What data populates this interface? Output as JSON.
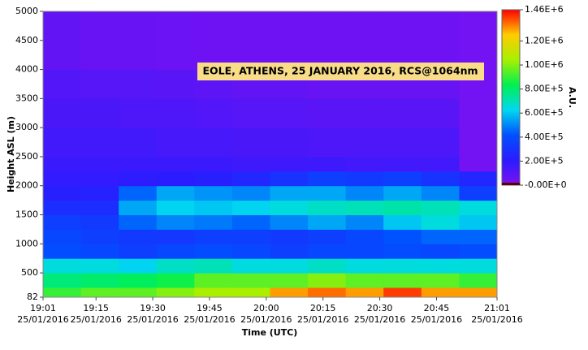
{
  "chart_data": {
    "type": "heatmap",
    "annotation": "EOLE, ATHENS, 25 JANUARY 2016, RCS@1064nm",
    "ylabel": "Height ASL (m)",
    "xlabel": "Time (UTC)",
    "colorbar_label": "A.U.",
    "xlim": [
      "2016-01-25 19:01",
      "2016-01-25 21:01"
    ],
    "xticks": [
      {
        "value": "2016-01-25 19:01",
        "label": [
          "19:01",
          "25/01/2016"
        ]
      },
      {
        "value": "2016-01-25 19:15",
        "label": [
          "19:15",
          "25/01/2016"
        ]
      },
      {
        "value": "2016-01-25 19:30",
        "label": [
          "19:30",
          "25/01/2016"
        ]
      },
      {
        "value": "2016-01-25 19:45",
        "label": [
          "19:45",
          "25/01/2016"
        ]
      },
      {
        "value": "2016-01-25 20:00",
        "label": [
          "20:00",
          "25/01/2016"
        ]
      },
      {
        "value": "2016-01-25 20:15",
        "label": [
          "20:15",
          "25/01/2016"
        ]
      },
      {
        "value": "2016-01-25 20:30",
        "label": [
          "20:30",
          "25/01/2016"
        ]
      },
      {
        "value": "2016-01-25 20:45",
        "label": [
          "20:45",
          "25/01/2016"
        ]
      },
      {
        "value": "2016-01-25 21:01",
        "label": [
          "21:01",
          "25/01/2016"
        ]
      }
    ],
    "ylim": [
      82,
      5000
    ],
    "yticks": [
      82,
      500,
      1000,
      1500,
      2000,
      2500,
      3000,
      3500,
      4000,
      4500,
      5000
    ],
    "x_bins": [
      "2016-01-25 19:01",
      "2016-01-25 19:11",
      "2016-01-25 19:21",
      "2016-01-25 19:31",
      "2016-01-25 19:41",
      "2016-01-25 19:51",
      "2016-01-25 20:01",
      "2016-01-25 20:11",
      "2016-01-25 20:21",
      "2016-01-25 20:31",
      "2016-01-25 20:41",
      "2016-01-25 20:51",
      "2016-01-25 21:01"
    ],
    "y_bins": [
      82,
      250,
      500,
      750,
      1000,
      1250,
      1500,
      1750,
      2000,
      2250,
      2500,
      3000,
      3500,
      4000,
      5000
    ],
    "z": [
      [
        900000,
        950000,
        950000,
        1000000,
        1050000,
        1050000,
        1300000,
        1350000,
        1300000,
        1400000,
        1300000,
        1300000
      ],
      [
        780000,
        800000,
        820000,
        850000,
        950000,
        950000,
        950000,
        1000000,
        950000,
        950000,
        950000,
        900000
      ],
      [
        650000,
        650000,
        620000,
        680000,
        700000,
        650000,
        650000,
        680000,
        650000,
        650000,
        650000,
        650000
      ],
      [
        400000,
        380000,
        350000,
        380000,
        400000,
        380000,
        350000,
        380000,
        380000,
        400000,
        380000,
        400000
      ],
      [
        380000,
        350000,
        330000,
        320000,
        350000,
        350000,
        330000,
        350000,
        380000,
        420000,
        450000,
        450000
      ],
      [
        350000,
        330000,
        450000,
        500000,
        480000,
        450000,
        500000,
        550000,
        500000,
        600000,
        650000,
        600000
      ],
      [
        280000,
        280000,
        550000,
        620000,
        600000,
        620000,
        650000,
        680000,
        700000,
        720000,
        700000,
        650000
      ],
      [
        220000,
        230000,
        450000,
        550000,
        520000,
        500000,
        550000,
        550000,
        500000,
        550000,
        500000,
        350000
      ],
      [
        190000,
        190000,
        200000,
        210000,
        220000,
        250000,
        300000,
        350000,
        330000,
        350000,
        300000,
        250000
      ],
      [
        170000,
        170000,
        170000,
        170000,
        170000,
        160000,
        160000,
        160000,
        150000,
        150000,
        150000,
        30000
      ],
      [
        150000,
        150000,
        150000,
        140000,
        140000,
        130000,
        130000,
        120000,
        120000,
        120000,
        120000,
        30000
      ],
      [
        130000,
        130000,
        120000,
        120000,
        110000,
        100000,
        100000,
        90000,
        90000,
        90000,
        90000,
        30000
      ],
      [
        110000,
        100000,
        100000,
        90000,
        80000,
        70000,
        70000,
        60000,
        60000,
        60000,
        60000,
        30000
      ],
      [
        70000,
        60000,
        60000,
        50000,
        40000,
        40000,
        40000,
        40000,
        40000,
        40000,
        40000,
        30000
      ]
    ],
    "clim": [
      0,
      1460000
    ],
    "cticks": [
      {
        "value": 0,
        "label": "-0.00E+0"
      },
      {
        "value": 200000,
        "label": "2.00E+5"
      },
      {
        "value": 400000,
        "label": "4.00E+5"
      },
      {
        "value": 600000,
        "label": "6.00E+5"
      },
      {
        "value": 800000,
        "label": "8.00E+5"
      },
      {
        "value": 1000000,
        "label": "1.00E+6"
      },
      {
        "value": 1200000,
        "label": "1.20E+6"
      },
      {
        "value": 1460000,
        "label": "1.46E+6"
      }
    ],
    "colormap": [
      "#7f10f0",
      "#2a1cff",
      "#0050ff",
      "#00d8f0",
      "#00f050",
      "#a8f000",
      "#ffcc00",
      "#ff0000"
    ]
  }
}
